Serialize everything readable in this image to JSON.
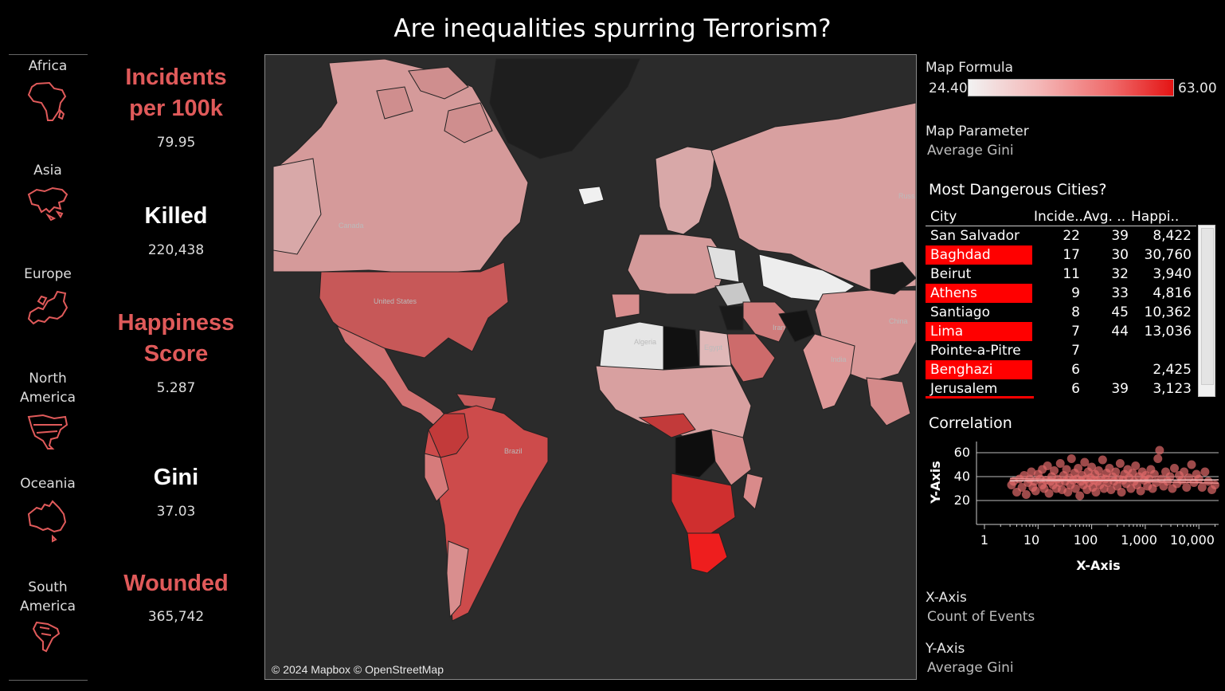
{
  "title": "Are inequalities spurring Terrorism?",
  "regions": [
    {
      "label": "Africa",
      "icon": "africa-outline-icon"
    },
    {
      "label": "Asia",
      "icon": "asia-outline-icon"
    },
    {
      "label": "Europe",
      "icon": "europe-outline-icon"
    },
    {
      "label": "North America",
      "icon": "north-america-outline-icon"
    },
    {
      "label": "Oceania",
      "icon": "oceania-outline-icon"
    },
    {
      "label": "South America",
      "icon": "south-america-outline-icon"
    }
  ],
  "kpis": {
    "incidents": {
      "line1": "Incidents",
      "line2": "per 100k",
      "value": "79.95"
    },
    "killed": {
      "label": "Killed",
      "value": "220,438"
    },
    "happiness": {
      "line1": "Happiness",
      "line2": "Score",
      "value": "5.287"
    },
    "gini": {
      "label": "Gini",
      "value": "37.03"
    },
    "wounded": {
      "label": "Wounded",
      "value": "365,742"
    }
  },
  "map": {
    "attribution": "© 2024 Mapbox © OpenStreetMap",
    "labels": [
      "Canada",
      "United States",
      "Brazil",
      "Algeria",
      "Egypt",
      "Iran",
      "India",
      "China",
      "Russ"
    ]
  },
  "legend": {
    "title": "Map Formula",
    "min": "24.40",
    "max": "63.00"
  },
  "map_parameter": {
    "label": "Map Parameter",
    "value": "Average Gini"
  },
  "cities": {
    "title": "Most Dangerous Cities?",
    "headers": [
      "City",
      "Incide..",
      "Avg. ..",
      "Happi.."
    ],
    "rows": [
      {
        "city": "San Salvador",
        "incidents": "22",
        "avg": "39",
        "happi": "8,422",
        "hi": false
      },
      {
        "city": "Baghdad",
        "incidents": "17",
        "avg": "30",
        "happi": "30,760",
        "hi": true
      },
      {
        "city": "Beirut",
        "incidents": "11",
        "avg": "32",
        "happi": "3,940",
        "hi": false
      },
      {
        "city": "Athens",
        "incidents": "9",
        "avg": "33",
        "happi": "4,816",
        "hi": true
      },
      {
        "city": "Santiago",
        "incidents": "8",
        "avg": "45",
        "happi": "10,362",
        "hi": false
      },
      {
        "city": "Lima",
        "incidents": "7",
        "avg": "44",
        "happi": "13,036",
        "hi": true
      },
      {
        "city": "Pointe-a-Pitre",
        "incidents": "7",
        "avg": "",
        "happi": "",
        "hi": false
      },
      {
        "city": "Benghazi",
        "incidents": "6",
        "avg": "",
        "happi": "2,425",
        "hi": true
      },
      {
        "city": "Jerusalem",
        "incidents": "6",
        "avg": "39",
        "happi": "3,123",
        "hi": false
      }
    ]
  },
  "correlation": {
    "title": "Correlation",
    "x_label": "X-Axis",
    "y_label": "Y-Axis",
    "y_ticks": [
      "60",
      "40",
      "20"
    ],
    "x_ticks": [
      "1",
      "10",
      "100",
      "1,000",
      "10,000"
    ]
  },
  "x_axis_param": {
    "label": "X-Axis",
    "value": "Count of Events"
  },
  "y_axis_param": {
    "label": "Y-Axis",
    "value": "Average Gini"
  },
  "chart_data": {
    "type": "scatter",
    "title": "Correlation",
    "xlabel": "X-Axis",
    "ylabel": "Y-Axis",
    "x_scale": "log",
    "xlim": [
      1,
      25000
    ],
    "ylim": [
      10,
      65
    ],
    "yticks": [
      20,
      40,
      60
    ],
    "xticks": [
      1,
      10,
      100,
      1000,
      10000
    ],
    "grid": true,
    "trend_lines": [
      {
        "x": [
          3,
          25000
        ],
        "y": [
          38.5,
          34.5
        ]
      },
      {
        "x": [
          3,
          25000
        ],
        "y": [
          36.5,
          37.3
        ]
      }
    ],
    "points": [
      [
        3.2,
        33
      ],
      [
        3.5,
        36
      ],
      [
        4,
        27
      ],
      [
        4.5,
        38
      ],
      [
        5,
        31
      ],
      [
        5.5,
        41
      ],
      [
        6,
        25
      ],
      [
        6.5,
        35
      ],
      [
        7,
        38
      ],
      [
        7.5,
        44
      ],
      [
        8,
        31
      ],
      [
        8.5,
        36
      ],
      [
        9,
        28
      ],
      [
        10,
        42
      ],
      [
        11,
        38
      ],
      [
        12,
        33
      ],
      [
        12,
        46
      ],
      [
        13,
        30
      ],
      [
        14,
        37
      ],
      [
        15,
        49
      ],
      [
        16,
        26
      ],
      [
        17,
        36
      ],
      [
        18,
        40
      ],
      [
        19,
        33
      ],
      [
        20,
        45
      ],
      [
        22,
        30
      ],
      [
        23,
        38
      ],
      [
        25,
        35
      ],
      [
        26,
        51
      ],
      [
        28,
        29
      ],
      [
        30,
        41
      ],
      [
        32,
        36
      ],
      [
        34,
        46
      ],
      [
        36,
        27
      ],
      [
        38,
        39
      ],
      [
        40,
        33
      ],
      [
        42,
        55
      ],
      [
        45,
        37
      ],
      [
        48,
        43
      ],
      [
        50,
        30
      ],
      [
        53,
        38
      ],
      [
        56,
        47
      ],
      [
        60,
        24
      ],
      [
        63,
        36
      ],
      [
        66,
        41
      ],
      [
        70,
        33
      ],
      [
        74,
        52
      ],
      [
        78,
        38
      ],
      [
        82,
        29
      ],
      [
        86,
        44
      ],
      [
        90,
        35
      ],
      [
        95,
        39
      ],
      [
        100,
        48
      ],
      [
        105,
        31
      ],
      [
        110,
        37
      ],
      [
        115,
        42
      ],
      [
        120,
        27
      ],
      [
        128,
        36
      ],
      [
        135,
        45
      ],
      [
        142,
        33
      ],
      [
        150,
        39
      ],
      [
        160,
        54
      ],
      [
        170,
        30
      ],
      [
        180,
        38
      ],
      [
        190,
        43
      ],
      [
        200,
        35
      ],
      [
        215,
        47
      ],
      [
        230,
        29
      ],
      [
        245,
        40
      ],
      [
        260,
        36
      ],
      [
        280,
        44
      ],
      [
        300,
        32
      ],
      [
        320,
        38
      ],
      [
        340,
        51
      ],
      [
        360,
        27
      ],
      [
        385,
        37
      ],
      [
        410,
        42
      ],
      [
        440,
        34
      ],
      [
        470,
        46
      ],
      [
        500,
        39
      ],
      [
        540,
        30
      ],
      [
        580,
        43
      ],
      [
        620,
        36
      ],
      [
        660,
        49
      ],
      [
        700,
        33
      ],
      [
        760,
        40
      ],
      [
        820,
        28
      ],
      [
        880,
        44
      ],
      [
        950,
        37
      ],
      [
        1020,
        41
      ],
      [
        1100,
        32
      ],
      [
        1180,
        38
      ],
      [
        1270,
        46
      ],
      [
        1370,
        30
      ],
      [
        1480,
        42
      ],
      [
        1600,
        35
      ],
      [
        1720,
        55
      ],
      [
        1850,
        62
      ],
      [
        2000,
        38
      ],
      [
        2200,
        32
      ],
      [
        2400,
        44
      ],
      [
        2600,
        36
      ],
      [
        2900,
        40
      ],
      [
        3200,
        30
      ],
      [
        3500,
        47
      ],
      [
        3900,
        34
      ],
      [
        4300,
        41
      ],
      [
        4800,
        37
      ],
      [
        5300,
        44
      ],
      [
        5900,
        31
      ],
      [
        6500,
        39
      ],
      [
        7300,
        50
      ],
      [
        8100,
        35
      ],
      [
        9000,
        42
      ],
      [
        10000,
        38
      ],
      [
        11500,
        31
      ],
      [
        13000,
        44
      ],
      [
        15000,
        36
      ],
      [
        17500,
        29
      ],
      [
        20000,
        33
      ]
    ]
  }
}
